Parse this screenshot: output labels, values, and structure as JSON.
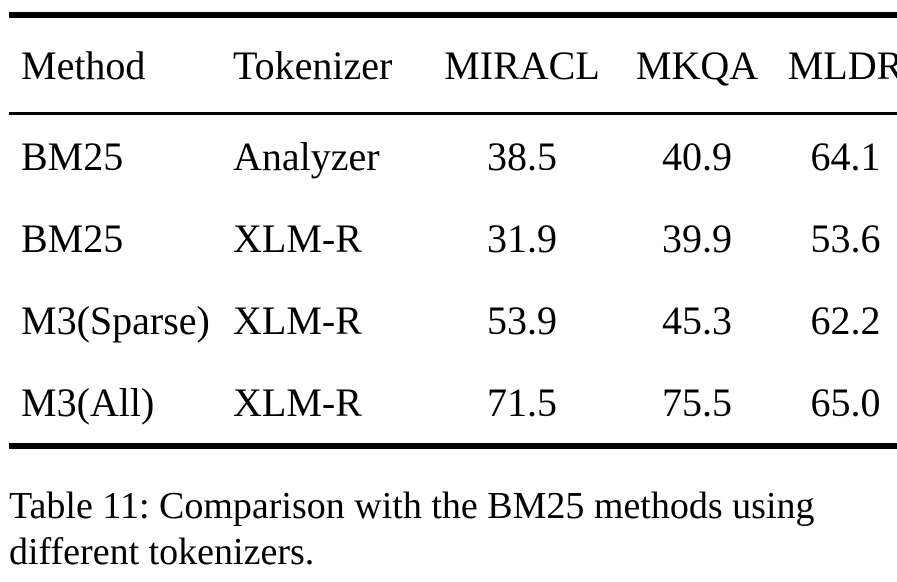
{
  "table": {
    "columns": [
      "Method",
      "Tokenizer",
      "MIRACL",
      "MKQA",
      "MLDR"
    ],
    "rows": [
      [
        "BM25",
        "Analyzer",
        "38.5",
        "40.9",
        "64.1"
      ],
      [
        "BM25",
        "XLM-R",
        "31.9",
        "39.9",
        "53.6"
      ],
      [
        "M3(Sparse)",
        "XLM-R",
        "53.9",
        "45.3",
        "62.2"
      ],
      [
        "M3(All)",
        "XLM-R",
        "71.5",
        "75.5",
        "65.0"
      ]
    ],
    "caption": "Table 11: Comparison with the BM25 methods using different tokenizers."
  }
}
